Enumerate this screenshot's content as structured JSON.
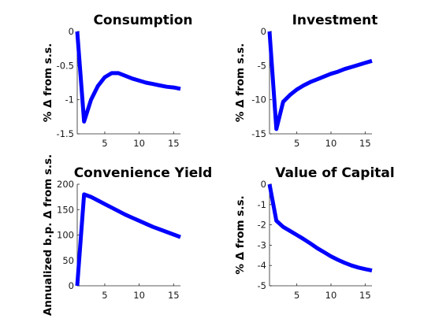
{
  "colors": {
    "series": "#0000ff",
    "axis": "#262626"
  },
  "chart_data": [
    {
      "type": "line",
      "title": "Consumption",
      "ylabel": "% Δ from s.s.",
      "xlim": [
        1,
        16
      ],
      "ylim": [
        -1.5,
        0
      ],
      "xticks": [
        5,
        10,
        15
      ],
      "xtick_labels": [
        "5",
        "10",
        "15"
      ],
      "yticks": [
        -1.5,
        -1,
        -0.5,
        0
      ],
      "ytick_labels": [
        "-1.5",
        "-1",
        "-0.5",
        "0"
      ],
      "grid": false,
      "series": [
        {
          "x": [
            1,
            2,
            3,
            4,
            5,
            6,
            7,
            8,
            9,
            10,
            11,
            12,
            13,
            14,
            15,
            16
          ],
          "values": [
            0,
            -1.32,
            -1.0,
            -0.8,
            -0.67,
            -0.61,
            -0.61,
            -0.65,
            -0.69,
            -0.72,
            -0.75,
            -0.77,
            -0.79,
            -0.81,
            -0.82,
            -0.84
          ]
        }
      ]
    },
    {
      "type": "line",
      "title": "Investment",
      "ylabel": "% Δ from s.s.",
      "xlim": [
        1,
        16
      ],
      "ylim": [
        -15,
        0
      ],
      "xticks": [
        5,
        10,
        15
      ],
      "xtick_labels": [
        "5",
        "10",
        "15"
      ],
      "yticks": [
        -15,
        -10,
        -5,
        0
      ],
      "ytick_labels": [
        "-15",
        "-10",
        "-5",
        "0"
      ],
      "grid": false,
      "series": [
        {
          "x": [
            1,
            2,
            3,
            4,
            5,
            6,
            7,
            8,
            9,
            10,
            11,
            12,
            13,
            14,
            15,
            16
          ],
          "values": [
            0,
            -14.3,
            -10.3,
            -9.3,
            -8.5,
            -7.9,
            -7.4,
            -7.0,
            -6.6,
            -6.2,
            -5.9,
            -5.5,
            -5.2,
            -4.9,
            -4.6,
            -4.3
          ]
        }
      ]
    },
    {
      "type": "line",
      "title": "Convenience Yield",
      "ylabel": "Annualized b.p. Δ from s.s.",
      "xlim": [
        1,
        16
      ],
      "ylim": [
        0,
        200
      ],
      "xticks": [
        5,
        10,
        15
      ],
      "xtick_labels": [
        "5",
        "10",
        "15"
      ],
      "yticks": [
        0,
        50,
        100,
        150,
        200
      ],
      "ytick_labels": [
        "0",
        "50",
        "100",
        "150",
        "200"
      ],
      "grid": false,
      "series": [
        {
          "x": [
            1,
            2,
            3,
            4,
            5,
            6,
            7,
            8,
            9,
            10,
            11,
            12,
            13,
            14,
            15,
            16
          ],
          "values": [
            0,
            180,
            175,
            168,
            161,
            154,
            147,
            140,
            134,
            128,
            122,
            116,
            111,
            106,
            101,
            96
          ]
        }
      ]
    },
    {
      "type": "line",
      "title": "Value of Capital",
      "ylabel": "% Δ from s.s.",
      "xlim": [
        1,
        16
      ],
      "ylim": [
        -5,
        0
      ],
      "xticks": [
        5,
        10,
        15
      ],
      "xtick_labels": [
        "5",
        "10",
        "15"
      ],
      "yticks": [
        -5,
        -4,
        -3,
        -2,
        -1,
        0
      ],
      "ytick_labels": [
        "-5",
        "-4",
        "-3",
        "-2",
        "-1",
        "0"
      ],
      "grid": false,
      "series": [
        {
          "x": [
            1,
            2,
            3,
            4,
            5,
            6,
            7,
            8,
            9,
            10,
            11,
            12,
            13,
            14,
            15,
            16
          ],
          "values": [
            0,
            -1.8,
            -2.1,
            -2.3,
            -2.5,
            -2.7,
            -2.92,
            -3.15,
            -3.35,
            -3.55,
            -3.72,
            -3.87,
            -4.0,
            -4.1,
            -4.18,
            -4.25
          ]
        }
      ]
    }
  ]
}
